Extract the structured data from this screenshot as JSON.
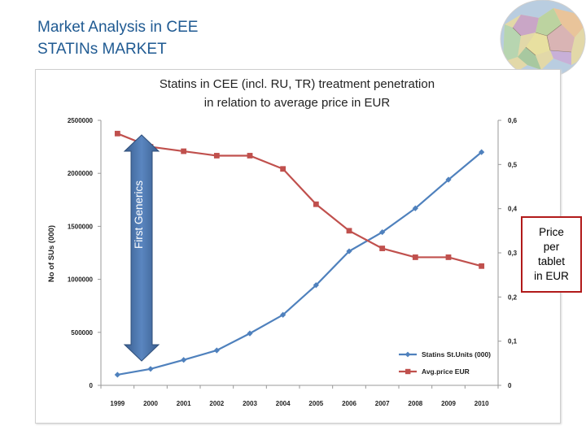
{
  "slide": {
    "title_line1": "Market Analysis in CEE",
    "title_line2": "STATINs MARKET"
  },
  "map": {
    "icon": "europe-map-icon"
  },
  "price_note": [
    "Price",
    "per",
    "tablet",
    "in EUR"
  ],
  "arrow_label": "First Generics",
  "chart_data": {
    "type": "line",
    "title": [
      "Statins in CEE (incl. RU, TR) treatment penetration",
      "in relation to average price in EUR"
    ],
    "categories": [
      "1999",
      "2000",
      "2001",
      "2002",
      "2003",
      "2004",
      "2005",
      "2006",
      "2007",
      "2008",
      "2009",
      "2010"
    ],
    "y_left": {
      "label": "No of SUs (000)",
      "range": [
        0,
        2500000
      ],
      "ticks": [
        "0",
        "500000",
        "1000000",
        "1500000",
        "2000000",
        "2500000"
      ],
      "tick_values": [
        0,
        500000,
        1000000,
        1500000,
        2000000,
        2500000
      ]
    },
    "y_right": {
      "range": [
        0,
        0.6
      ],
      "ticks": [
        "0",
        "0,1",
        "0,2",
        "0,3",
        "0,4",
        "0,5",
        "0,6"
      ],
      "tick_values": [
        0,
        0.1,
        0.2,
        0.3,
        0.4,
        0.5,
        0.6
      ]
    },
    "series": [
      {
        "name": "Statins St.Units (000)",
        "axis": "left",
        "color": "#4f81bd",
        "marker": "diamond",
        "values": [
          100000,
          155000,
          240000,
          330000,
          490000,
          665000,
          945000,
          1265000,
          1445000,
          1670000,
          1940000,
          2200000
        ]
      },
      {
        "name": "Avg.price EUR",
        "axis": "right",
        "color": "#c0504d",
        "marker": "square",
        "values": [
          0.57,
          0.54,
          0.53,
          0.52,
          0.52,
          0.49,
          0.41,
          0.35,
          0.31,
          0.29,
          0.29,
          0.27
        ]
      }
    ],
    "grid": false,
    "legend_position": "bottom-right"
  }
}
